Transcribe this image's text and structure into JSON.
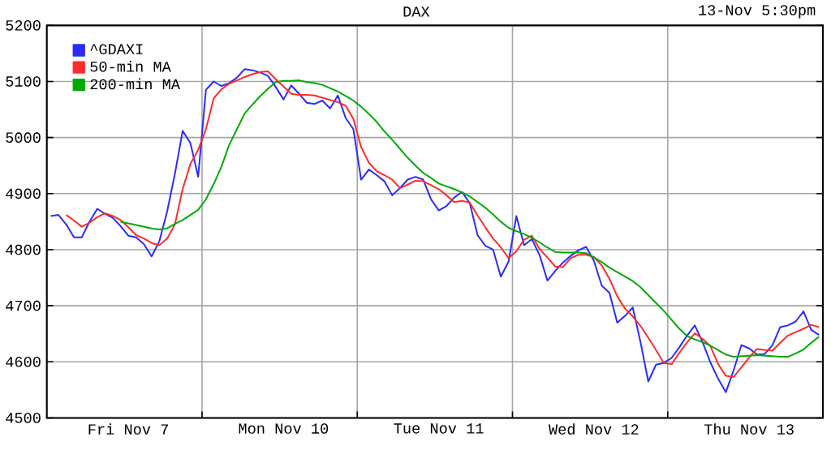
{
  "chart_data": {
    "type": "line",
    "title": "DAX",
    "subtitle": "13-Nov 5:30pm",
    "categories": [
      null,
      null,
      null,
      null,
      null,
      null,
      null,
      null,
      null,
      null,
      "Fri Nov  7",
      null,
      null,
      null,
      null,
      null,
      null,
      null,
      null,
      null,
      null,
      null,
      null,
      null,
      null,
      null,
      null,
      null,
      null,
      null,
      "Mon Nov 10",
      null,
      null,
      null,
      null,
      null,
      null,
      null,
      null,
      null,
      null,
      null,
      null,
      null,
      null,
      null,
      null,
      null,
      null,
      null,
      "Tue Nov 11",
      null,
      null,
      null,
      null,
      null,
      null,
      null,
      null,
      null,
      null,
      null,
      null,
      null,
      null,
      null,
      null,
      null,
      null,
      null,
      "Wed Nov 12",
      null,
      null,
      null,
      null,
      null,
      null,
      null,
      null,
      null,
      null,
      null,
      null,
      null,
      null,
      null,
      null,
      null,
      null,
      null,
      "Thu Nov 13",
      null,
      null,
      null,
      null,
      null,
      null,
      null,
      null,
      null
    ],
    "ylim": [
      4500,
      5200
    ],
    "yticks": [
      4500,
      4600,
      4700,
      4800,
      4900,
      5000,
      5100,
      5200
    ],
    "grid": true,
    "legend": "top left",
    "marker": "none",
    "line_style": "solid",
    "series": [
      {
        "name": "^GDAXI",
        "color": "#2b2bff",
        "values": [
          4860,
          4862,
          4845,
          4822,
          4822,
          4850,
          4873,
          4864,
          4857,
          4842,
          4825,
          4822,
          4810,
          4788,
          4815,
          4868,
          4935,
          5012,
          4990,
          4930,
          5085,
          5100,
          5092,
          5097,
          5107,
          5122,
          5120,
          5116,
          5110,
          5090,
          5068,
          5093,
          5078,
          5062,
          5060,
          5066,
          5052,
          5075,
          5035,
          5015,
          4925,
          4943,
          4933,
          4922,
          4897,
          4910,
          4925,
          4930,
          4925,
          4890,
          4870,
          4878,
          4893,
          4903,
          4883,
          4826,
          4807,
          4800,
          4752,
          4779,
          4860,
          4808,
          4819,
          4790,
          4745,
          4762,
          4777,
          4789,
          4799,
          4805,
          4780,
          4736,
          4723,
          4670,
          4682,
          4697,
          4635,
          4565,
          4595,
          4598,
          4607,
          4626,
          4647,
          4665,
          4635,
          4599,
          4570,
          4546,
          4585,
          4630,
          4624,
          4613,
          4614,
          4630,
          4662,
          4665,
          4672,
          4690,
          4657,
          4648
        ]
      },
      {
        "name": "50-min MA",
        "color": "#ff2b2b",
        "values": [
          null,
          null,
          4862,
          4852,
          4841,
          4848,
          4858,
          4865,
          4860,
          4853,
          4840,
          4826,
          4820,
          4812,
          4808,
          4820,
          4845,
          4908,
          4953,
          4978,
          5015,
          5070,
          5086,
          5096,
          5102,
          5108,
          5113,
          5117,
          5118,
          5104,
          5091,
          5078,
          5076,
          5076,
          5075,
          5071,
          5067,
          5063,
          5057,
          5033,
          4983,
          4955,
          4940,
          4933,
          4925,
          4910,
          4916,
          4923,
          4922,
          4915,
          4908,
          4897,
          4885,
          4887,
          4884,
          4861,
          4840,
          4820,
          4804,
          4785,
          4797,
          4818,
          4825,
          4801,
          4786,
          4770,
          4769,
          4785,
          4791,
          4791,
          4787,
          4772,
          4748,
          4717,
          4695,
          4681,
          4664,
          4643,
          4621,
          4598,
          4596,
          4616,
          4635,
          4651,
          4641,
          4628,
          4596,
          4575,
          4573,
          4590,
          4608,
          4623,
          4621,
          4620,
          4634,
          4647,
          4653,
          4659,
          4666,
          4662
        ]
      },
      {
        "name": "200-min MA",
        "color": "#00aa00",
        "values": [
          null,
          null,
          null,
          null,
          null,
          null,
          null,
          null,
          null,
          4850,
          4847,
          4844,
          4841,
          4838,
          4836,
          4838,
          4846,
          4853,
          4862,
          4871,
          4890,
          4917,
          4948,
          4987,
          5015,
          5043,
          5059,
          5074,
          5087,
          5099,
          5101,
          5101,
          5102,
          5099,
          5097,
          5094,
          5088,
          5082,
          5074,
          5066,
          5055,
          5042,
          5028,
          5011,
          4996,
          4980,
          4964,
          4950,
          4937,
          4928,
          4918,
          4913,
          4908,
          4902,
          4895,
          4885,
          4875,
          4863,
          4850,
          4839,
          4833,
          4828,
          4821,
          4813,
          4804,
          4796,
          4795,
          4795,
          4795,
          4794,
          4786,
          4778,
          4768,
          4760,
          4752,
          4744,
          4733,
          4719,
          4705,
          4691,
          4675,
          4659,
          4646,
          4640,
          4635,
          4629,
          4621,
          4613,
          4609,
          4610,
          4611,
          4612,
          4611,
          4610,
          4609,
          4609,
          4615,
          4622,
          4634,
          4645
        ]
      }
    ]
  }
}
